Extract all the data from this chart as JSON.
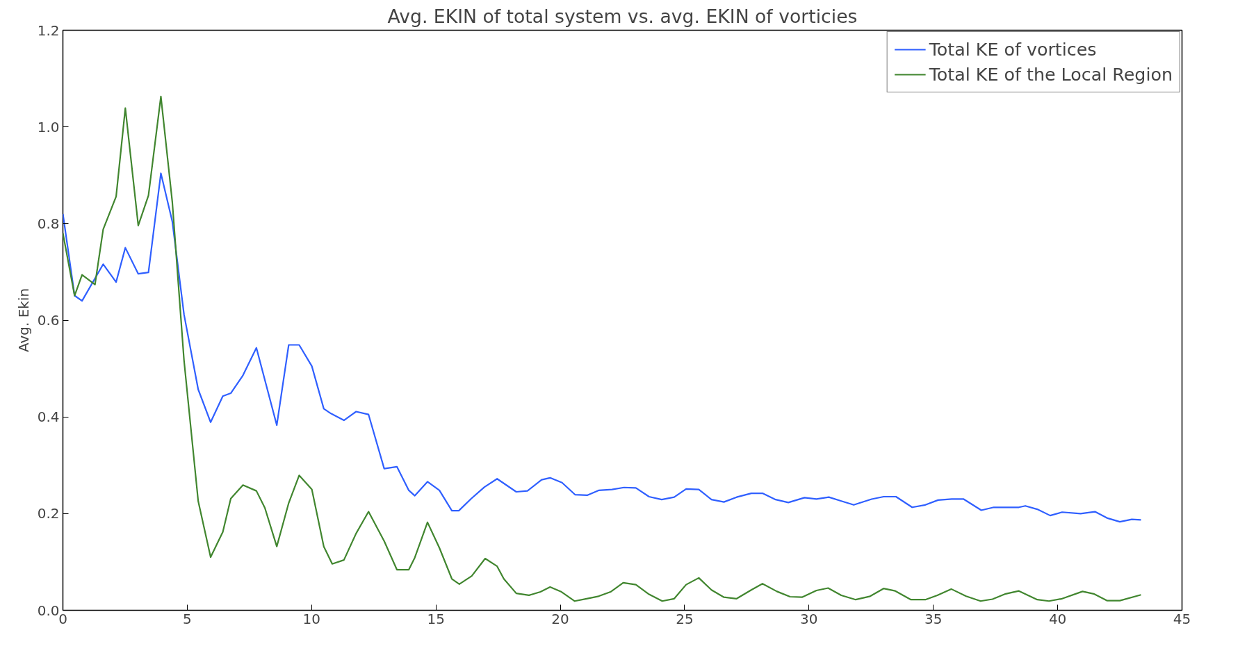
{
  "chart_data": {
    "type": "line",
    "title": "Avg. EKIN of total system vs. avg. EKIN of vorticies",
    "ylabel": "Avg. Ekin",
    "xlim": [
      0,
      45
    ],
    "xticks": [
      0,
      5,
      10,
      15,
      20,
      25,
      30,
      35,
      40,
      45
    ],
    "ylim": [
      0,
      1.2
    ],
    "yticks": [
      {
        "value": 0,
        "label": "0.0"
      },
      0.2,
      0.4,
      0.6,
      0.8,
      {
        "value": 1,
        "label": "1.0"
      },
      1.2
    ],
    "grid": false,
    "legend": "top right",
    "marker": "none",
    "line_style": "solid",
    "series": [
      {
        "name": "Total KE of vortices",
        "color": "#2f5fff",
        "x": [
          0,
          0.47,
          0.77,
          1.62,
          2.14,
          2.51,
          3.03,
          3.44,
          3.94,
          4.4,
          4.87,
          5.44,
          5.94,
          6.43,
          6.75,
          7.24,
          7.78,
          8.6,
          9.08,
          9.5,
          10.01,
          10.49,
          10.78,
          11.3,
          11.79,
          12.29,
          12.92,
          13.43,
          13.91,
          14.15,
          14.66,
          15.14,
          15.64,
          15.92,
          16.42,
          16.95,
          17.46,
          18.23,
          18.68,
          19.25,
          19.59,
          20.07,
          20.6,
          21.08,
          21.54,
          22.08,
          22.56,
          23.04,
          23.57,
          24.08,
          24.58,
          25.06,
          25.57,
          26.08,
          26.58,
          27.09,
          27.68,
          28.13,
          28.66,
          29.17,
          29.82,
          30.3,
          30.8,
          31.3,
          31.8,
          32.52,
          33.0,
          33.5,
          34.15,
          34.68,
          35.19,
          35.74,
          36.22,
          36.93,
          37.43,
          37.96,
          38.44,
          38.7,
          39.18,
          39.7,
          40.18,
          40.92,
          41.5,
          41.98,
          42.5,
          42.98,
          43.35
        ],
        "values": [
          0.82,
          0.651,
          0.64,
          0.716,
          0.679,
          0.75,
          0.696,
          0.699,
          0.904,
          0.804,
          0.612,
          0.457,
          0.389,
          0.443,
          0.449,
          0.486,
          0.543,
          0.383,
          0.549,
          0.549,
          0.505,
          0.417,
          0.407,
          0.393,
          0.411,
          0.405,
          0.293,
          0.297,
          0.248,
          0.237,
          0.266,
          0.248,
          0.206,
          0.206,
          0.231,
          0.255,
          0.272,
          0.245,
          0.247,
          0.27,
          0.274,
          0.264,
          0.239,
          0.238,
          0.248,
          0.25,
          0.254,
          0.253,
          0.235,
          0.229,
          0.234,
          0.251,
          0.25,
          0.229,
          0.224,
          0.234,
          0.242,
          0.242,
          0.229,
          0.223,
          0.233,
          0.23,
          0.234,
          0.226,
          0.218,
          0.23,
          0.235,
          0.235,
          0.213,
          0.218,
          0.228,
          0.23,
          0.23,
          0.207,
          0.213,
          0.213,
          0.213,
          0.216,
          0.209,
          0.196,
          0.203,
          0.2,
          0.204,
          0.191,
          0.183,
          0.188,
          0.187
        ]
      },
      {
        "name": "Total KE of the Local Region",
        "color": "#41862f",
        "x": [
          0,
          0.47,
          0.77,
          1.29,
          1.62,
          2.14,
          2.51,
          3.03,
          3.44,
          3.94,
          4.4,
          4.87,
          5.44,
          5.94,
          6.43,
          6.75,
          7.24,
          7.78,
          8.12,
          8.6,
          9.08,
          9.5,
          10.01,
          10.49,
          10.83,
          11.3,
          11.79,
          12.29,
          12.92,
          13.43,
          13.91,
          14.15,
          14.66,
          15.14,
          15.64,
          15.94,
          16.44,
          16.98,
          17.46,
          17.73,
          18.23,
          18.74,
          19.2,
          19.59,
          20.05,
          20.58,
          21.06,
          21.54,
          22.02,
          22.53,
          23.04,
          23.57,
          24.1,
          24.58,
          25.06,
          25.57,
          26.08,
          26.58,
          27.09,
          27.68,
          28.13,
          28.71,
          29.24,
          29.72,
          30.3,
          30.77,
          31.3,
          31.88,
          32.46,
          33.0,
          33.47,
          34.1,
          34.68,
          35.16,
          35.72,
          36.32,
          36.9,
          37.38,
          37.91,
          38.44,
          39.18,
          39.65,
          40.18,
          41.0,
          41.45,
          41.98,
          42.5,
          43.35
        ],
        "values": [
          0.78,
          0.651,
          0.694,
          0.674,
          0.788,
          0.856,
          1.039,
          0.796,
          0.858,
          1.063,
          0.844,
          0.517,
          0.226,
          0.11,
          0.162,
          0.231,
          0.259,
          0.247,
          0.212,
          0.132,
          0.222,
          0.279,
          0.25,
          0.132,
          0.096,
          0.104,
          0.159,
          0.204,
          0.143,
          0.084,
          0.084,
          0.109,
          0.182,
          0.129,
          0.065,
          0.054,
          0.071,
          0.107,
          0.091,
          0.065,
          0.035,
          0.031,
          0.038,
          0.048,
          0.038,
          0.019,
          0.024,
          0.029,
          0.038,
          0.057,
          0.053,
          0.033,
          0.019,
          0.024,
          0.053,
          0.067,
          0.042,
          0.027,
          0.024,
          0.042,
          0.055,
          0.039,
          0.028,
          0.027,
          0.041,
          0.046,
          0.031,
          0.022,
          0.029,
          0.045,
          0.04,
          0.022,
          0.022,
          0.031,
          0.044,
          0.029,
          0.019,
          0.023,
          0.034,
          0.04,
          0.022,
          0.019,
          0.024,
          0.039,
          0.034,
          0.02,
          0.02,
          0.032
        ]
      }
    ]
  }
}
